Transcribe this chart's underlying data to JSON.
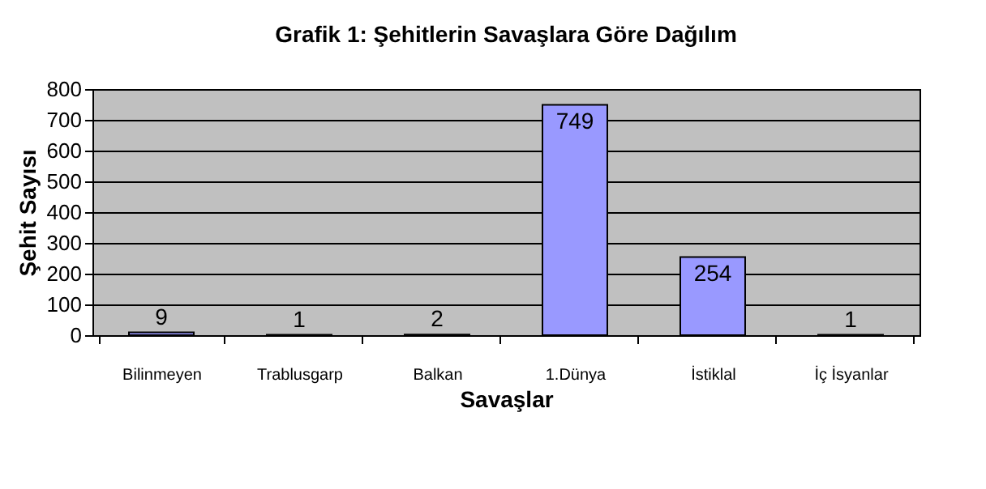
{
  "chart_data": {
    "type": "bar",
    "title": "Grafik 1: Şehitlerin Savaşlara Göre Dağılım",
    "xlabel": "Savaşlar",
    "ylabel": "Şehit Sayısı",
    "categories": [
      "Bilinmeyen",
      "Trablusgarp",
      "Balkan",
      "1.Dünya",
      "İstiklal",
      "İç İsyanlar"
    ],
    "values": [
      9,
      1,
      2,
      749,
      254,
      1
    ],
    "color": "#9999ff",
    "ylim": [
      0,
      800
    ],
    "yticks": [
      0,
      100,
      200,
      300,
      400,
      500,
      600,
      700,
      800
    ],
    "grid": "y",
    "data_labels": true
  }
}
